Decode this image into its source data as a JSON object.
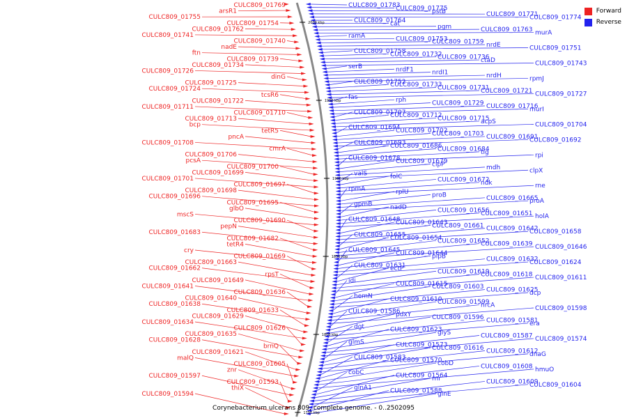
{
  "title": "Corynebacterium ulcerans 809, complete genome. - 0..2502095",
  "legend": {
    "forward": "Forward",
    "reverse": "Reverse"
  },
  "colors": {
    "forward": "#ee2222",
    "reverse": "#2222ee",
    "backbone": "#888888"
  },
  "ticks": [
    "2000 kbp",
    "1950 kbp",
    "1900 kbp",
    "1850 kbp",
    "1800 kbp",
    "1750 kbp"
  ],
  "forward_labels": [
    "CULC809_01769",
    "arsR1",
    "CULC809_01755",
    "CULC809_01754",
    "CULC809_01762",
    "CULC809_01741",
    "CULC809_01740",
    "nadE",
    "ftn",
    "CULC809_01739",
    "CULC809_01734",
    "CULC809_01726",
    "dinG",
    "CULC809_01725",
    "CULC809_01724",
    "tcsR6",
    "CULC809_01722",
    "CULC809_01711",
    "CULC809_01710",
    "CULC809_01713",
    "bcp",
    "tetR5",
    "pncA",
    "CULC809_01708",
    "cmrA",
    "CULC809_01706",
    "pcsA",
    "CULC809_01700",
    "CULC809_01699",
    "CULC809_01701",
    "CULC809_01697",
    "CULC809_01698",
    "CULC809_01696",
    "CULC809_01695",
    "glbO",
    "mscS",
    "CULC809_01690",
    "pepN",
    "CULC809_01683",
    "CULC809_01682",
    "tetR4",
    "cry",
    "CULC809_01669",
    "CULC809_01663",
    "CULC809_01662",
    "rpsT",
    "CULC809_01649",
    "CULC809_01641",
    "CULC809_01636",
    "CULC809_01640",
    "CULC809_01638",
    "CULC809_01633",
    "CULC809_01629",
    "CULC809_01634",
    "CULC809_01626",
    "CULC809_01635",
    "CULC809_01628",
    "brnQ",
    "CULC809_01621",
    "malQ",
    "CULC809_01605",
    "znr",
    "CULC809_01597",
    "CULC809_01593",
    "thiX",
    "CULC809_01594"
  ],
  "reverse_labels": [
    "CULC809_01783",
    "CULC809_01775",
    "pstB",
    "CULC809_01771",
    "CULC809_01774",
    "CULC809_01764",
    "cat",
    "pgm",
    "CULC809_01763",
    "murA",
    "ramA",
    "CULC809_01753",
    "CULC809_01759",
    "nrdE",
    "CULC809_01751",
    "CULC809_01758",
    "CULC809_01732",
    "CULC809_01736",
    "ctaD",
    "CULC809_01743",
    "serB",
    "nrdF1",
    "nrdI1",
    "nrdH",
    "rpmJ",
    "CULC809_01752",
    "CULC809_01733",
    "CULC809_01731",
    "CULC809_01721",
    "CULC809_01727",
    "fas",
    "rph",
    "CULC809_01729",
    "CULC809_01716",
    "murI",
    "CULC809_01707",
    "CULC809_01712",
    "CULC809_01715",
    "acpS",
    "CULC809_01704",
    "CULC809_01694",
    "CULC809_01702",
    "CULC809_01703",
    "CULC809_01691",
    "CULC809_01692",
    "CULC809_01693",
    "CULC809_01686",
    "CULC809_01684",
    "tig",
    "rpi",
    "CULC809_01678",
    "CULC809_01679",
    "clpP",
    "mdh",
    "clpX",
    "valS",
    "folC",
    "CULC809_01672",
    "ndk",
    "rne",
    "rpmA",
    "rplU",
    "proB",
    "CULC809_01665",
    "proA",
    "gpmB",
    "nadD",
    "CULC809_01656",
    "CULC809_01651",
    "holA",
    "CULC809_01648",
    "CULC809_01643",
    "CULC809_01661",
    "CULC809_01642",
    "CULC809_01658",
    "CULC809_01655",
    "CULC809_01654",
    "CULC809_01652",
    "CULC809_01639",
    "CULC809_01646",
    "CULC809_01645",
    "CULC809_01644",
    "pipB",
    "CULC809_01632",
    "CULC809_01624",
    "CULC809_01631",
    "ectP",
    "CULC809_01619",
    "CULC809_01618",
    "CULC809_01611",
    "idi",
    "CULC809_01615",
    "CULC809_01603",
    "CULC809_01625",
    "dcp",
    "hemN",
    "CULC809_01610",
    "CULC809_01599",
    "hrcA",
    "CULC809_01598",
    "CULC809_01586",
    "pdxY",
    "CULC809_01596",
    "CULC809_01581",
    "era",
    "dgt",
    "CULC809_01623",
    "glyS",
    "CULC809_01587",
    "CULC809_01574",
    "glmS",
    "CULC809_01573",
    "CULC809_01616",
    "CULC809_01612",
    "dnaG",
    "CULC809_01583",
    "CULC809_01570",
    "cobD",
    "CULC809_01608",
    "hmuO",
    "cobC",
    "CULC809_01564",
    "rnr",
    "CULC809_01609",
    "CULC809_01604",
    "glnA1",
    "CULC809_01588",
    "glnE"
  ]
}
